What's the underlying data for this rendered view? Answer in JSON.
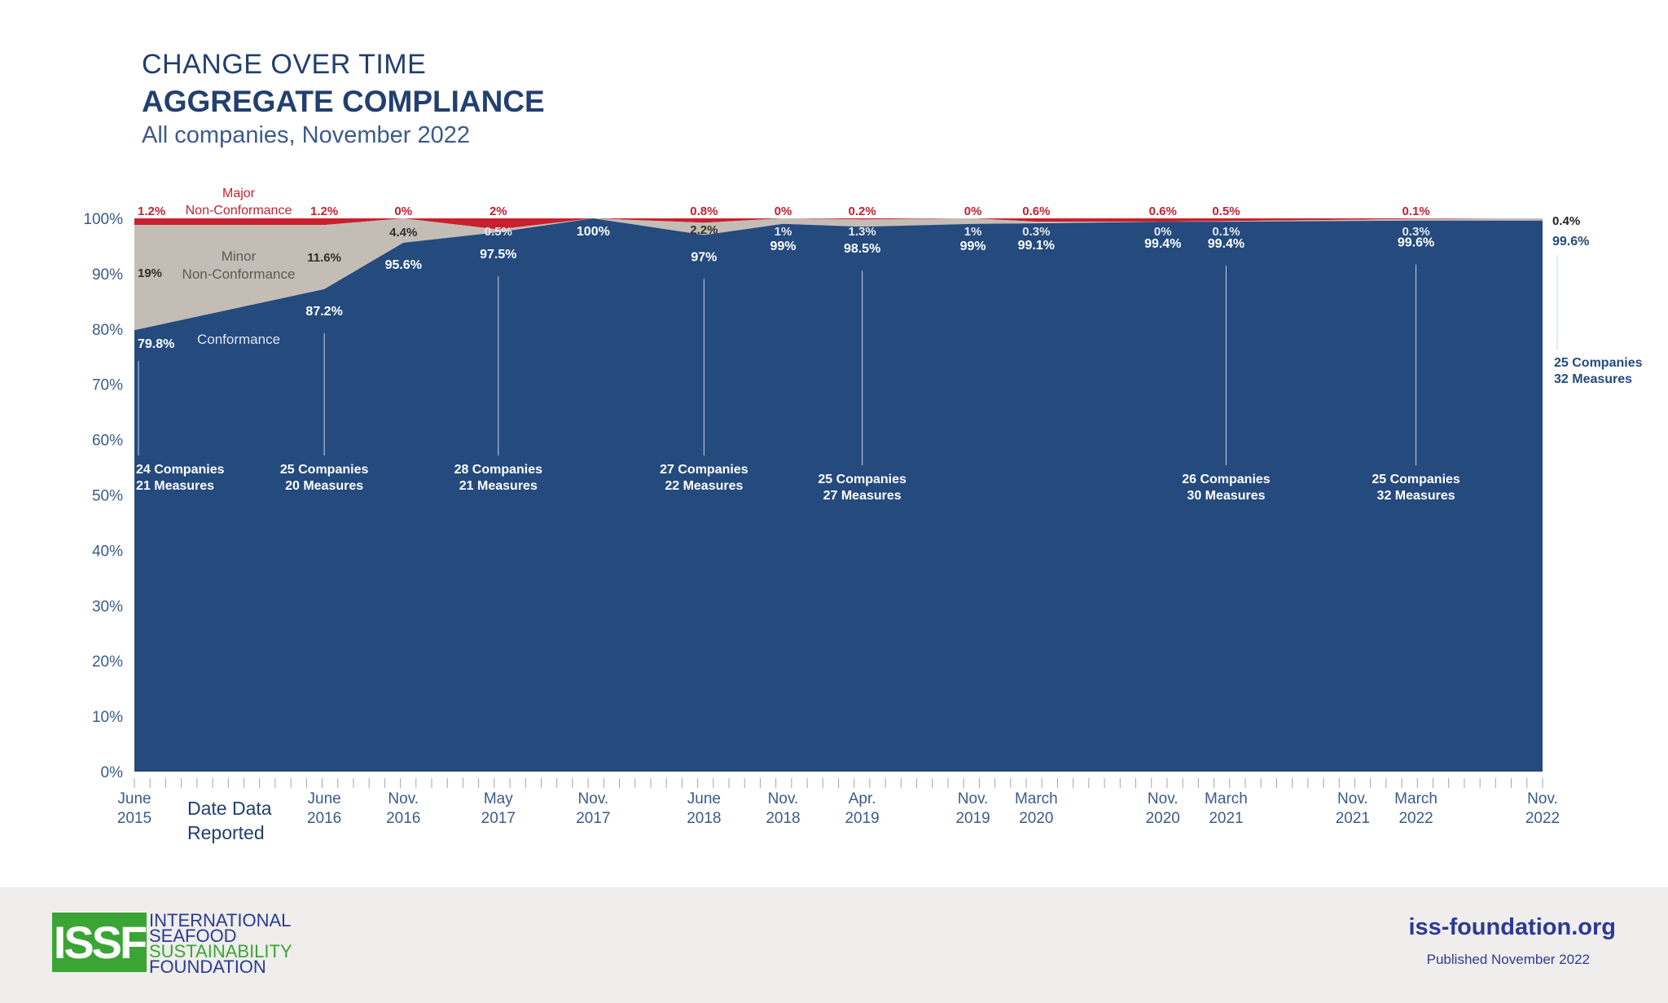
{
  "header": {
    "line1": "CHANGE OVER TIME",
    "line2": "AGGREGATE COMPLIANCE",
    "line3": "All companies, November 2022"
  },
  "colors": {
    "conformance": "#244a7e",
    "minor": "#c4bdb5",
    "major": "#c8202f",
    "axis_text": "#3b5b8a",
    "title": "#233f6f",
    "logo_green": "#3aa535",
    "logo_blue": "#2b3a95"
  },
  "chart_data": {
    "type": "area",
    "stacked": true,
    "ylim": [
      0,
      100
    ],
    "y_ticks": [
      "0%",
      "10%",
      "20%",
      "30%",
      "40%",
      "50%",
      "60%",
      "70%",
      "80%",
      "90%",
      "100%"
    ],
    "xlabel": "Date Data Reported",
    "x_label_lines": [
      "Date Data",
      "Reported"
    ],
    "x_tick_labels": [
      {
        "month": 0,
        "l1": "June",
        "l2": "2015"
      },
      {
        "month": 12,
        "l1": "June",
        "l2": "2016"
      },
      {
        "month": 17,
        "l1": "Nov.",
        "l2": "2016"
      },
      {
        "month": 23,
        "l1": "May",
        "l2": "2017"
      },
      {
        "month": 29,
        "l1": "Nov.",
        "l2": "2017"
      },
      {
        "month": 36,
        "l1": "June",
        "l2": "2018"
      },
      {
        "month": 41,
        "l1": "Nov.",
        "l2": "2018"
      },
      {
        "month": 46,
        "l1": "Apr.",
        "l2": "2019"
      },
      {
        "month": 53,
        "l1": "Nov.",
        "l2": "2019"
      },
      {
        "month": 57,
        "l1": "March",
        "l2": "2020"
      },
      {
        "month": 65,
        "l1": "Nov.",
        "l2": "2020"
      },
      {
        "month": 69,
        "l1": "March",
        "l2": "2021"
      },
      {
        "month": 77,
        "l1": "Nov.",
        "l2": "2021"
      },
      {
        "month": 81,
        "l1": "March",
        "l2": "2022"
      },
      {
        "month": 89,
        "l1": "Nov.",
        "l2": "2022"
      }
    ],
    "minor_tick_count": 90,
    "series": [
      {
        "name": "Conformance",
        "key": "conformance"
      },
      {
        "name": "Minor Non-Conformance",
        "key": "minor"
      },
      {
        "name": "Major Non-Conformance",
        "key": "major"
      }
    ],
    "series_label_lines": {
      "conformance": [
        "Conformance"
      ],
      "minor": [
        "Minor",
        "Non-Conformance"
      ],
      "major": [
        "Major",
        "Non-Conformance"
      ]
    },
    "points": [
      {
        "month": 0,
        "date": "June 2015",
        "conformance": 79.8,
        "minor": 19,
        "major": 1.2,
        "labels": {
          "major": "1.2%",
          "minor": "19%",
          "conformance": "79.8%"
        },
        "group": [
          "24 Companies",
          "21 Measures"
        ]
      },
      {
        "month": 12,
        "date": "June 2016",
        "conformance": 87.2,
        "minor": 11.6,
        "major": 1.2,
        "labels": {
          "major": "1.2%",
          "minor": "11.6%",
          "conformance": "87.2%"
        },
        "group": [
          "25 Companies",
          "20 Measures"
        ]
      },
      {
        "month": 17,
        "date": "Nov. 2016",
        "conformance": 95.6,
        "minor": 4.4,
        "major": 0,
        "labels": {
          "major": "0%",
          "minor": "4.4%",
          "conformance": "95.6%"
        }
      },
      {
        "month": 23,
        "date": "May 2017",
        "conformance": 97.5,
        "minor": 0.5,
        "major": 2,
        "labels": {
          "major": "2%",
          "minor": "0.5%",
          "conformance": "97.5%"
        },
        "group": [
          "28 Companies",
          "21 Measures"
        ]
      },
      {
        "month": 29,
        "date": "Nov. 2017",
        "conformance": 100,
        "minor": 0,
        "major": 0,
        "labels": {
          "conformance": "100%"
        }
      },
      {
        "month": 36,
        "date": "June 2018",
        "conformance": 97,
        "minor": 2.2,
        "major": 0.8,
        "labels": {
          "major": "0.8%",
          "minor": "2.2%",
          "conformance": "97%"
        },
        "group": [
          "27 Companies",
          "22 Measures"
        ]
      },
      {
        "month": 41,
        "date": "Nov. 2018",
        "conformance": 99,
        "minor": 1,
        "major": 0,
        "labels": {
          "major": "0%",
          "minor": "1%",
          "conformance": "99%"
        }
      },
      {
        "month": 46,
        "date": "Apr. 2019",
        "conformance": 98.5,
        "minor": 1.3,
        "major": 0.2,
        "labels": {
          "major": "0.2%",
          "minor": "1.3%",
          "conformance": "98.5%"
        },
        "group": [
          "25 Companies",
          "27 Measures"
        ]
      },
      {
        "month": 53,
        "date": "Nov. 2019",
        "conformance": 99,
        "minor": 1,
        "major": 0,
        "labels": {
          "major": "0%",
          "minor": "1%",
          "conformance": "99%"
        }
      },
      {
        "month": 57,
        "date": "March 2020",
        "conformance": 99.1,
        "minor": 0.3,
        "major": 0.6,
        "labels": {
          "major": "0.6%",
          "minor": "0.3%",
          "conformance": "99.1%"
        }
      },
      {
        "month": 65,
        "date": "Nov. 2020",
        "conformance": 99.4,
        "minor": 0,
        "major": 0.6,
        "labels": {
          "major": "0.6%",
          "minor": "0%",
          "conformance": "99.4%"
        }
      },
      {
        "month": 69,
        "date": "March 2021",
        "conformance": 99.4,
        "minor": 0.1,
        "major": 0.5,
        "labels": {
          "major": "0.5%",
          "minor": "0.1%",
          "conformance": "99.4%"
        },
        "group": [
          "26 Companies",
          "30 Measures"
        ]
      },
      {
        "month": 81,
        "date": "March 2022",
        "conformance": 99.6,
        "minor": 0.3,
        "major": 0.1,
        "labels": {
          "major": "0.1%",
          "minor": "0.3%",
          "conformance": "99.6%"
        },
        "group": [
          "25 Companies",
          "32 Measures"
        ]
      },
      {
        "month": 89,
        "date": "Nov. 2022",
        "conformance": 99.6,
        "minor": 0.4,
        "major": 0,
        "labels": {
          "minor": "0.4%",
          "conformance": "99.6%"
        },
        "group": [
          "25 Companies",
          "32 Measures"
        ]
      }
    ]
  },
  "footer": {
    "logo_text": "ISSF",
    "org_lines": [
      "INTERNATIONAL",
      "SEAFOOD",
      "SUSTAINABILITY",
      "FOUNDATION"
    ],
    "website": "iss-foundation.org",
    "published": "Published November 2022"
  }
}
